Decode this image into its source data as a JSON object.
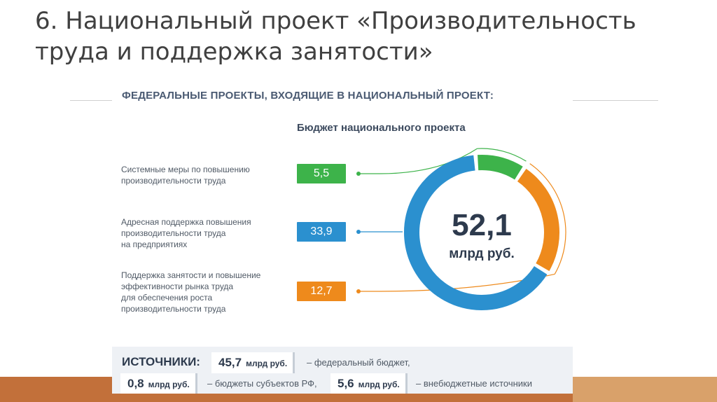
{
  "slide": {
    "title_line1": "6. Национальный проект «Производительность",
    "title_line2": "труда и поддержка занятости»"
  },
  "infographic": {
    "heading": "ФЕДЕРАЛЬНЫЕ ПРОЕКТЫ, ВХОДЯЩИЕ В НАЦИОНАЛЬНЫЙ ПРОЕКТ:",
    "budget_title": "Бюджет национального проекта",
    "projects": [
      {
        "label": "Системные меры по повышению\nпроизводительности труда",
        "value": "5,5",
        "color": "#3db34a"
      },
      {
        "label": "Адресная поддержка повышения\nпроизводительности труда\nна предприятиях",
        "value": "33,9",
        "color": "#2b90cf"
      },
      {
        "label": "Поддержка занятости и повышение\nэффективности рынка труда\nдля обеспечения роста\nпроизводительности труда",
        "value": "12,7",
        "color": "#ee8a1c"
      }
    ],
    "total_value": "52,1",
    "total_unit": "млрд руб.",
    "sources": {
      "title": "ИСТОЧНИКИ:",
      "items": [
        {
          "num": "45,7",
          "unit": "млрд руб.",
          "desc": "– федеральный бюджет,"
        },
        {
          "num": "0,8",
          "unit": "млрд руб.",
          "desc": "– бюджеты субъектов РФ,"
        },
        {
          "num": "5,6",
          "unit": "млрд руб.",
          "desc": "– внебюджетные источники"
        }
      ]
    }
  },
  "chart_data": {
    "type": "pie",
    "variant": "donut",
    "categories": [
      "Системные меры по повышению производительности труда",
      "Адресная поддержка повышения производительности труда на предприятиях",
      "Поддержка занятости и повышение эффективности рынка труда для обеспечения роста производительности труда"
    ],
    "values": [
      5.5,
      33.9,
      12.7
    ],
    "colors": [
      "#3db34a",
      "#2b90cf",
      "#ee8a1c"
    ],
    "title": "Бюджет национального проекта",
    "center_label": "52,1 млрд руб."
  }
}
